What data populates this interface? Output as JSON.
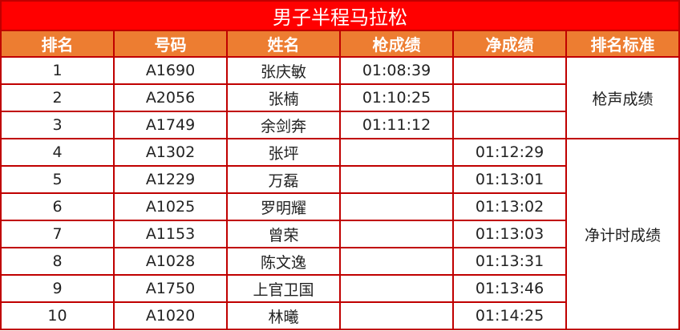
{
  "title": "男子半程马拉松",
  "headers": [
    "排名",
    "号码",
    "姓名",
    "枪成绩",
    "净成绩",
    "排名标准"
  ],
  "rows": [
    {
      "rank": "1",
      "bib": "A1690",
      "name": "张庆敏",
      "gun": "01:08:39",
      "net": ""
    },
    {
      "rank": "2",
      "bib": "A2056",
      "name": "张楠",
      "gun": "01:10:25",
      "net": ""
    },
    {
      "rank": "3",
      "bib": "A1749",
      "name": "余剑奔",
      "gun": "01:11:12",
      "net": ""
    },
    {
      "rank": "4",
      "bib": "A1302",
      "name": "张坪",
      "gun": "",
      "net": "01:12:29"
    },
    {
      "rank": "5",
      "bib": "A1229",
      "name": "万磊",
      "gun": "",
      "net": "01:13:01"
    },
    {
      "rank": "6",
      "bib": "A1025",
      "name": "罗明耀",
      "gun": "",
      "net": "01:13:02"
    },
    {
      "rank": "7",
      "bib": "A1153",
      "name": "曾荣",
      "gun": "",
      "net": "01:13:03"
    },
    {
      "rank": "8",
      "bib": "A1028",
      "name": "陈文逸",
      "gun": "",
      "net": "01:13:31"
    },
    {
      "rank": "9",
      "bib": "A1750",
      "name": "上官卫国",
      "gun": "",
      "net": "01:13:46"
    },
    {
      "rank": "10",
      "bib": "A1020",
      "name": "林曦",
      "gun": "",
      "net": "01:14:25"
    }
  ],
  "standards": {
    "gun": "枪声成绩",
    "net": "净计时成绩"
  },
  "colors": {
    "title_bg": "#ff0000",
    "header_bg": "#ed7d31",
    "border": "#c00000"
  }
}
